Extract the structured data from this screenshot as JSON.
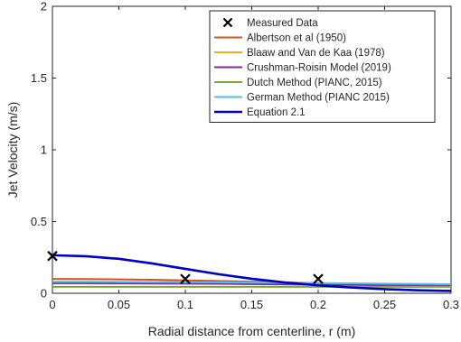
{
  "chart_data": {
    "type": "line",
    "xlabel": "Radial distance from centerline, r (m)",
    "ylabel": "Jet Velocity (m/s)",
    "xlim": [
      0,
      0.3
    ],
    "ylim": [
      0,
      2
    ],
    "xticks": [
      "0",
      "0.05",
      "0.1",
      "0.15",
      "0.2",
      "0.25",
      "0.3"
    ],
    "yticks": [
      "0",
      "0.5",
      "1",
      "1.5",
      "2"
    ],
    "grid": false,
    "legend_position": "top-right",
    "x": [
      0,
      0.025,
      0.05,
      0.075,
      0.1,
      0.125,
      0.15,
      0.175,
      0.2,
      0.225,
      0.25,
      0.275,
      0.3
    ],
    "series": [
      {
        "name": "Measured Data",
        "style": "marker",
        "color": "#000000",
        "points": [
          [
            0,
            0.26
          ],
          [
            0.1,
            0.1
          ],
          [
            0.2,
            0.1
          ]
        ]
      },
      {
        "name": "Albertson et al (1950)",
        "color": "#d95319",
        "values": [
          0.1,
          0.099,
          0.097,
          0.094,
          0.09,
          0.086,
          0.081,
          0.076,
          0.071,
          0.066,
          0.062,
          0.058,
          0.055
        ]
      },
      {
        "name": "Blaaw and Van de Kaa (1978)",
        "color": "#edb120",
        "values": [
          0.075,
          0.075,
          0.074,
          0.073,
          0.072,
          0.071,
          0.07,
          0.068,
          0.067,
          0.065,
          0.064,
          0.063,
          0.062
        ]
      },
      {
        "name": "Crushman-Roisin Model (2019)",
        "color": "#7e2f8e",
        "values": [
          0.07,
          0.07,
          0.069,
          0.068,
          0.067,
          0.066,
          0.064,
          0.062,
          0.06,
          0.058,
          0.056,
          0.054,
          0.052
        ]
      },
      {
        "name": "Dutch Method (PIANC, 2015)",
        "color": "#77ac30",
        "values": [
          0.045,
          0.045,
          0.045,
          0.045,
          0.045,
          0.045,
          0.045,
          0.045,
          0.045,
          0.045,
          0.045,
          0.045,
          0.045
        ]
      },
      {
        "name": "German Method (PIANC 2015)",
        "color": "#4dbeee",
        "values": [
          0.08,
          0.08,
          0.079,
          0.078,
          0.077,
          0.076,
          0.075,
          0.073,
          0.071,
          0.069,
          0.067,
          0.065,
          0.063
        ]
      },
      {
        "name": "Equation 2.1",
        "color": "#0000cc",
        "values": [
          0.265,
          0.258,
          0.24,
          0.208,
          0.17,
          0.133,
          0.101,
          0.075,
          0.055,
          0.04,
          0.029,
          0.021,
          0.016
        ]
      }
    ]
  }
}
